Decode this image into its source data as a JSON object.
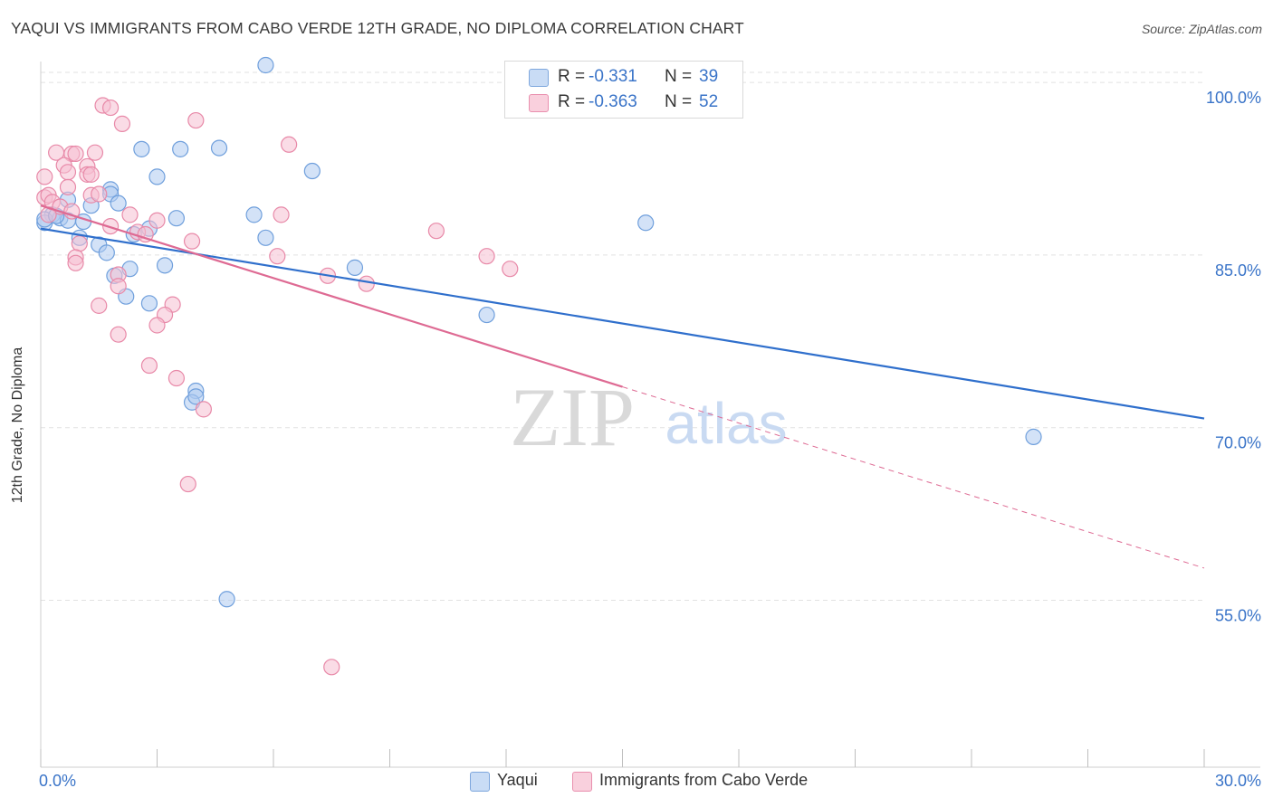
{
  "title": "YAQUI VS IMMIGRANTS FROM CABO VERDE 12TH GRADE, NO DIPLOMA CORRELATION CHART",
  "source": "Source: ZipAtlas.com",
  "watermark": {
    "zip": "ZIP",
    "atlas": "atlas"
  },
  "legend": {
    "rows": [
      {
        "r_label": "R =",
        "r_value": "-0.331",
        "n_label": "N =",
        "n_value": "39"
      },
      {
        "r_label": "R =",
        "r_value": "-0.363",
        "n_label": "N =",
        "n_value": "52"
      }
    ]
  },
  "bottom_legend": [
    "Yaqui",
    "Immigrants from Cabo Verde"
  ],
  "colors": {
    "blue_fill": "#aecbf0",
    "blue_stroke": "#6f9fdc",
    "blue_line": "#2f6fcc",
    "pink_fill": "#f6c0d1",
    "pink_stroke": "#e889a8",
    "pink_line": "#de6a93",
    "tick_text": "#3a74c8",
    "grid": "#e2e2e2"
  },
  "chart_data": {
    "type": "scatter",
    "title": "YAQUI VS IMMIGRANTS FROM CABO VERDE 12TH GRADE, NO DIPLOMA CORRELATION CHART",
    "xlabel": "",
    "ylabel": "12th Grade, No Diploma",
    "xlim": [
      0.0,
      30.0
    ],
    "ylim": [
      40.5,
      101.5
    ],
    "x_tick_labels": [
      {
        "value": 0.0,
        "label": "0.0%"
      },
      {
        "value": 30.0,
        "label": "30.0%"
      }
    ],
    "y_tick_labels": [
      {
        "value": 100.0,
        "label": "100.0%"
      },
      {
        "value": 85.0,
        "label": "85.0%"
      },
      {
        "value": 70.0,
        "label": "70.0%"
      },
      {
        "value": 55.0,
        "label": "55.0%"
      }
    ],
    "series": [
      {
        "name": "Yaqui",
        "color": "#6f9fdc",
        "regression": {
          "x": [
            0.0,
            30.0
          ],
          "y": [
            87.3,
            70.8
          ],
          "dashed_from": null
        },
        "points": [
          [
            5.8,
            101.5
          ],
          [
            2.6,
            94.2
          ],
          [
            3.6,
            94.2
          ],
          [
            4.6,
            94.3
          ],
          [
            3.0,
            91.8
          ],
          [
            7.0,
            92.3
          ],
          [
            1.8,
            90.7
          ],
          [
            1.8,
            90.3
          ],
          [
            1.3,
            89.3
          ],
          [
            2.0,
            89.5
          ],
          [
            0.7,
            89.8
          ],
          [
            0.3,
            88.5
          ],
          [
            0.5,
            88.2
          ],
          [
            0.7,
            88.0
          ],
          [
            0.1,
            87.8
          ],
          [
            0.1,
            88.1
          ],
          [
            1.1,
            87.9
          ],
          [
            3.5,
            88.2
          ],
          [
            5.5,
            88.5
          ],
          [
            2.8,
            87.3
          ],
          [
            2.4,
            86.8
          ],
          [
            1.0,
            86.5
          ],
          [
            5.8,
            86.5
          ],
          [
            1.5,
            85.9
          ],
          [
            1.7,
            85.2
          ],
          [
            2.3,
            83.8
          ],
          [
            3.2,
            84.1
          ],
          [
            8.1,
            83.9
          ],
          [
            1.9,
            83.2
          ],
          [
            2.2,
            81.4
          ],
          [
            2.8,
            80.8
          ],
          [
            11.5,
            79.8
          ],
          [
            15.6,
            87.8
          ],
          [
            4.0,
            73.2
          ],
          [
            3.9,
            72.2
          ],
          [
            4.0,
            72.7
          ],
          [
            4.8,
            55.1
          ],
          [
            25.6,
            69.2
          ],
          [
            0.4,
            88.4
          ]
        ]
      },
      {
        "name": "Immigrants from Cabo Verde",
        "color": "#e889a8",
        "regression": {
          "x": [
            0.0,
            30.0
          ],
          "y": [
            89.3,
            57.8
          ],
          "dashed_from": 15.0
        },
        "points": [
          [
            1.6,
            98.0
          ],
          [
            1.8,
            97.8
          ],
          [
            2.1,
            96.4
          ],
          [
            4.0,
            96.7
          ],
          [
            6.4,
            94.6
          ],
          [
            0.4,
            93.9
          ],
          [
            0.8,
            93.8
          ],
          [
            0.9,
            93.8
          ],
          [
            1.4,
            93.9
          ],
          [
            0.6,
            92.8
          ],
          [
            1.2,
            92.7
          ],
          [
            0.7,
            92.2
          ],
          [
            1.2,
            92.0
          ],
          [
            0.1,
            91.8
          ],
          [
            1.3,
            92.0
          ],
          [
            0.7,
            90.9
          ],
          [
            0.1,
            90.0
          ],
          [
            0.2,
            90.2
          ],
          [
            0.3,
            89.6
          ],
          [
            1.3,
            90.2
          ],
          [
            0.5,
            89.2
          ],
          [
            0.8,
            88.8
          ],
          [
            0.2,
            88.5
          ],
          [
            1.5,
            90.3
          ],
          [
            2.3,
            88.5
          ],
          [
            1.8,
            87.5
          ],
          [
            2.5,
            87.0
          ],
          [
            10.2,
            87.1
          ],
          [
            2.7,
            86.8
          ],
          [
            6.2,
            88.5
          ],
          [
            3.9,
            86.2
          ],
          [
            1.0,
            86.0
          ],
          [
            0.9,
            84.8
          ],
          [
            0.9,
            84.3
          ],
          [
            6.1,
            84.9
          ],
          [
            11.5,
            84.9
          ],
          [
            12.1,
            83.8
          ],
          [
            2.0,
            83.3
          ],
          [
            7.4,
            83.2
          ],
          [
            8.4,
            82.5
          ],
          [
            2.0,
            82.3
          ],
          [
            1.5,
            80.6
          ],
          [
            3.4,
            80.7
          ],
          [
            3.2,
            79.8
          ],
          [
            3.0,
            78.9
          ],
          [
            2.0,
            78.1
          ],
          [
            2.8,
            75.4
          ],
          [
            3.5,
            74.3
          ],
          [
            4.2,
            71.6
          ],
          [
            3.8,
            65.1
          ],
          [
            7.5,
            49.2
          ],
          [
            3.0,
            88.0
          ]
        ]
      }
    ]
  }
}
